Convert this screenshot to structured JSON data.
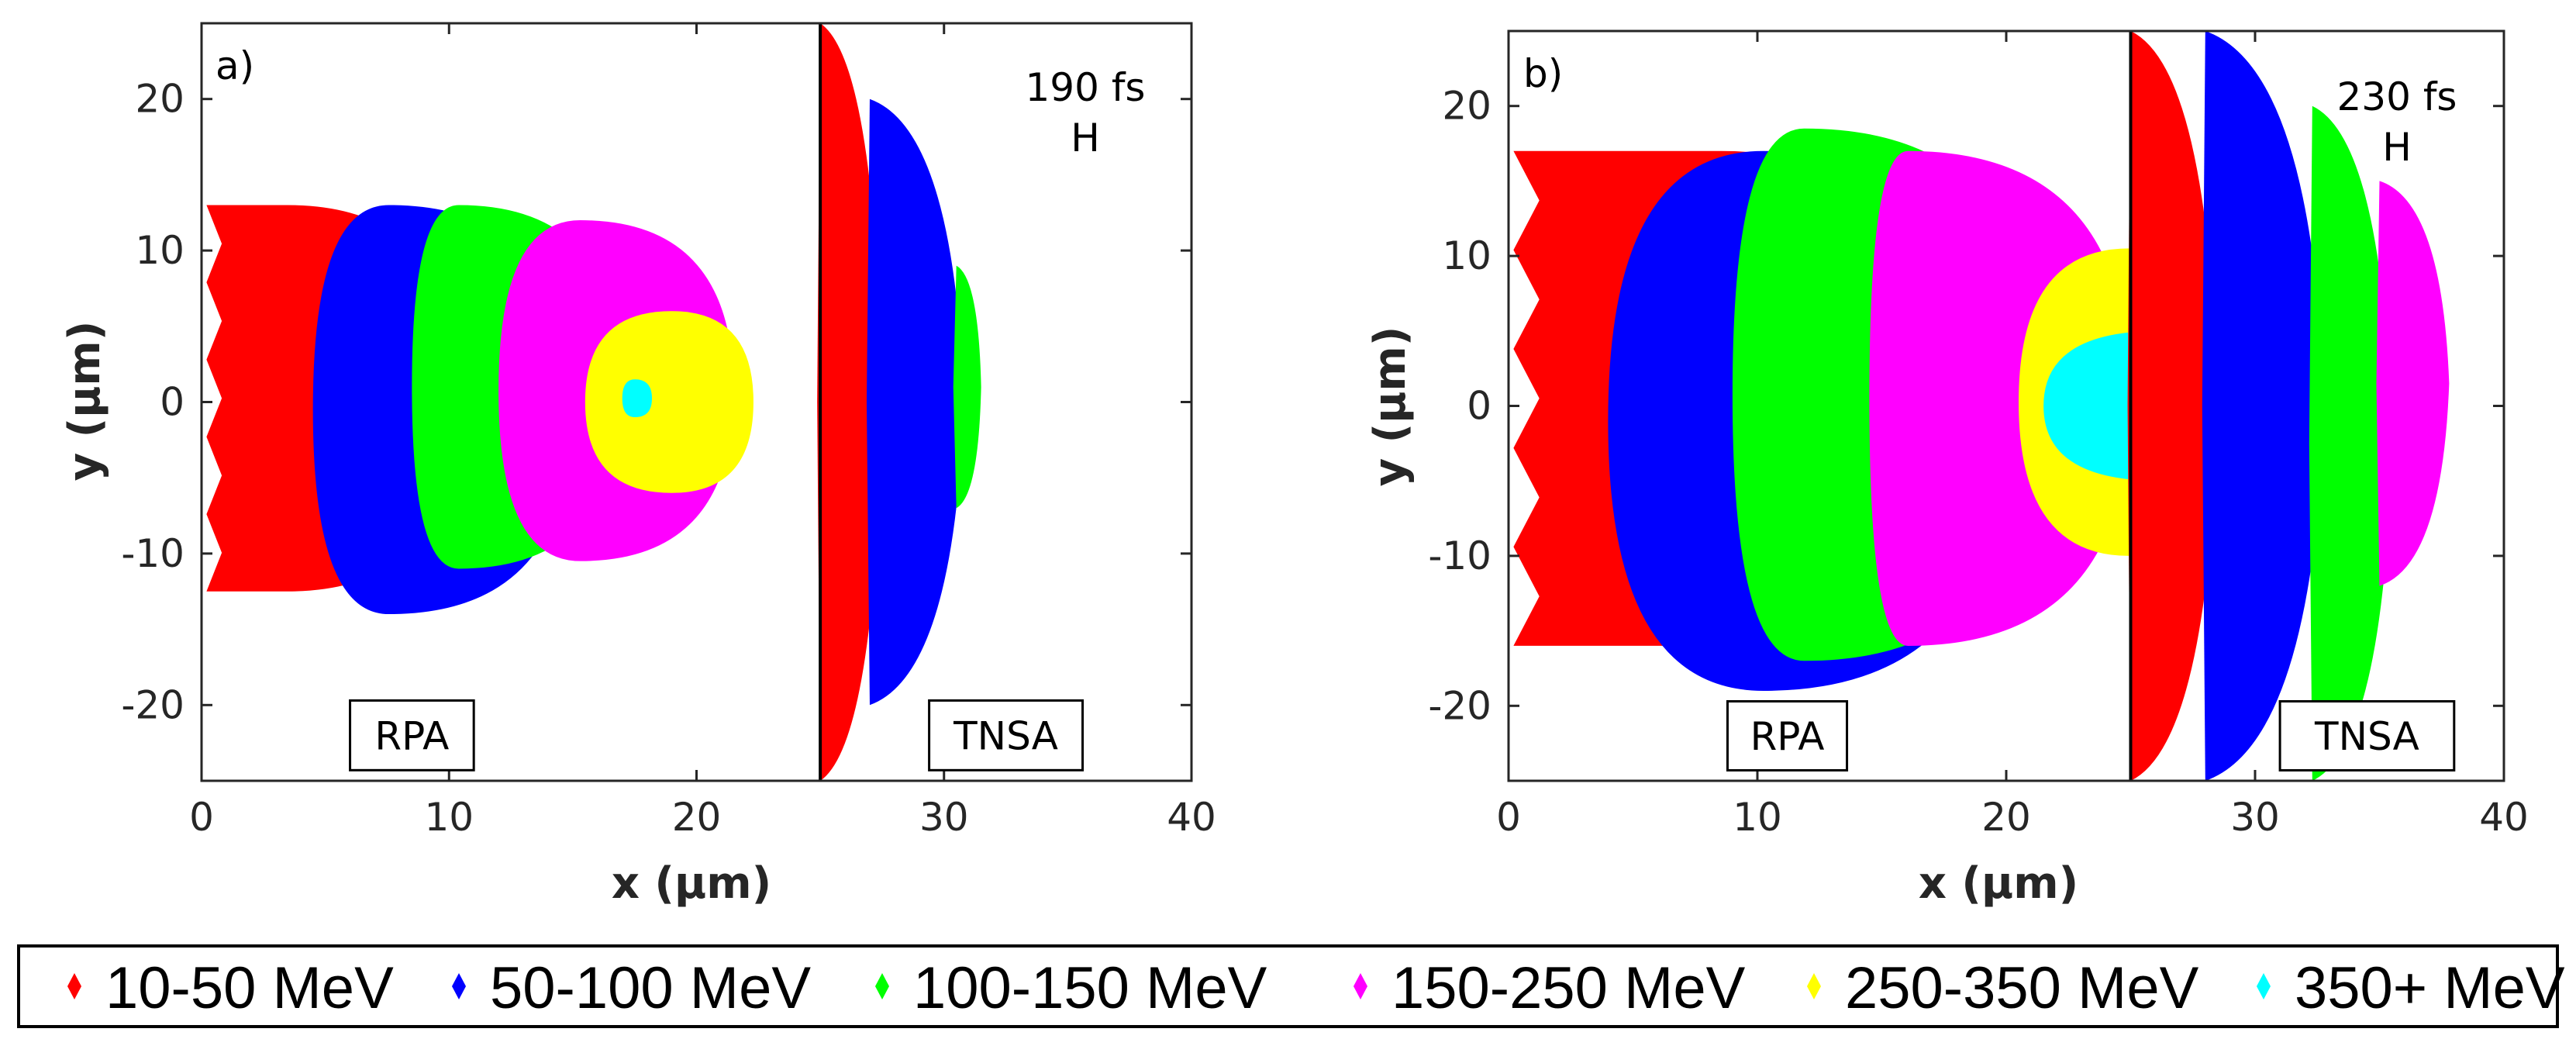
{
  "chart_data": [
    {
      "type": "scatter",
      "panel_label": "a)",
      "time": "190 fs",
      "species": "H",
      "xlabel": "x (μm)",
      "ylabel": "y (μm)",
      "xlim": [
        0,
        40
      ],
      "ylim": [
        -25,
        25
      ],
      "xticks": [
        0,
        10,
        20,
        30,
        40
      ],
      "yticks": [
        -20,
        -10,
        0,
        10,
        20
      ],
      "target_rear_x": 25,
      "regions": [
        {
          "label": "RPA",
          "center_x": 8.5,
          "center_y": -22,
          "half_width": 2.5,
          "half_height": 2.3
        },
        {
          "label": "TNSA",
          "center_x": 32.5,
          "center_y": -22,
          "half_width": 3.1,
          "half_height": 2.3
        }
      ],
      "series": [
        {
          "name": "10-50 MeV",
          "color": "#ff0000",
          "rpa_x_extent": [
            0.2,
            10.5
          ],
          "rpa_y_extent": [
            -12.5,
            13
          ],
          "tnsa_x_extent": [
            25.0,
            27.5
          ],
          "tnsa_y_extent": [
            -25,
            25
          ]
        },
        {
          "name": "50-100 MeV",
          "color": "#0000ff",
          "rpa_x_extent": [
            4.5,
            15.0
          ],
          "rpa_y_extent": [
            -14,
            13
          ],
          "tnsa_x_extent": [
            27.0,
            30.8
          ],
          "tnsa_y_extent": [
            -20,
            20
          ]
        },
        {
          "name": "100-150 MeV",
          "color": "#00ff00",
          "rpa_x_extent": [
            8.5,
            17.0
          ],
          "rpa_y_extent": [
            -11,
            13
          ],
          "tnsa_x_extent": [
            30.5,
            31.5
          ],
          "tnsa_y_extent": [
            -7,
            9
          ]
        },
        {
          "name": "150-250 MeV",
          "color": "#ff00ff",
          "rpa_x_extent": [
            12.0,
            21.5
          ],
          "rpa_y_extent": [
            -10.5,
            12
          ],
          "tnsa_x_extent": [],
          "tnsa_y_extent": []
        },
        {
          "name": "250-350 MeV",
          "color": "#ffff00",
          "rpa_x_extent": [
            15.5,
            22.3
          ],
          "rpa_y_extent": [
            -6,
            6
          ],
          "tnsa_x_extent": [],
          "tnsa_y_extent": []
        },
        {
          "name": "350+ MeV",
          "color": "#00ffff",
          "rpa_x_extent": [
            17.0,
            18.2
          ],
          "rpa_y_extent": [
            -1,
            1.5
          ],
          "tnsa_x_extent": [],
          "tnsa_y_extent": []
        }
      ]
    },
    {
      "type": "scatter",
      "panel_label": "b)",
      "time": "230 fs",
      "species": "H",
      "xlabel": "x (μm)",
      "ylabel": "y (μm)",
      "xlim": [
        0,
        40
      ],
      "ylim": [
        -25,
        25
      ],
      "xticks": [
        0,
        10,
        20,
        30,
        40
      ],
      "yticks": [
        -20,
        -10,
        0,
        10,
        20
      ],
      "target_rear_x": 25,
      "regions": [
        {
          "label": "RPA",
          "center_x": 11.2,
          "center_y": -22,
          "half_width": 2.4,
          "half_height": 2.3
        },
        {
          "label": "TNSA",
          "center_x": 34.5,
          "center_y": -22,
          "half_width": 3.5,
          "half_height": 2.3
        }
      ],
      "series": [
        {
          "name": "10-50 MeV",
          "color": "#ff0000",
          "rpa_x_extent": [
            0.2,
            17.5
          ],
          "rpa_y_extent": [
            -16,
            17
          ],
          "tnsa_x_extent": [
            25.0,
            28.5
          ],
          "tnsa_y_extent": [
            -25,
            25
          ]
        },
        {
          "name": "50-100 MeV",
          "color": "#0000ff",
          "rpa_x_extent": [
            4.0,
            20.0
          ],
          "rpa_y_extent": [
            -19,
            17
          ],
          "tnsa_x_extent": [
            28.0,
            32.8
          ],
          "tnsa_y_extent": [
            -25,
            25
          ]
        },
        {
          "name": "100-150 MeV",
          "color": "#00ff00",
          "rpa_x_extent": [
            9.0,
            21.5
          ],
          "rpa_y_extent": [
            -17,
            18.5
          ],
          "tnsa_x_extent": [
            32.3,
            35.5
          ],
          "tnsa_y_extent": [
            -25,
            20
          ]
        },
        {
          "name": "150-250 MeV",
          "color": "#ff00ff",
          "rpa_x_extent": [
            14.5,
            25.0
          ],
          "rpa_y_extent": [
            -16,
            17
          ],
          "tnsa_x_extent": [
            35.0,
            37.8
          ],
          "tnsa_y_extent": [
            -12,
            15
          ]
        },
        {
          "name": "250-350 MeV",
          "color": "#ffff00",
          "rpa_x_extent": [
            20.5,
            30.5
          ],
          "rpa_y_extent": [
            -10,
            10.5
          ],
          "tnsa_x_extent": [],
          "tnsa_y_extent": []
        },
        {
          "name": "350+ MeV",
          "color": "#00ffff",
          "rpa_x_extent": [
            21.5,
            30.0
          ],
          "rpa_y_extent": [
            -5,
            5
          ],
          "tnsa_x_extent": [],
          "tnsa_y_extent": []
        }
      ]
    }
  ],
  "legend": {
    "position": "bottom",
    "marker": "diamond",
    "items": [
      {
        "label": "10-50 MeV",
        "color": "#ff0000"
      },
      {
        "label": "50-100 MeV",
        "color": "#0000ff"
      },
      {
        "label": "100-150 MeV",
        "color": "#00ff00"
      },
      {
        "label": "150-250 MeV",
        "color": "#ff00ff"
      },
      {
        "label": "250-350 MeV",
        "color": "#ffff00"
      },
      {
        "label": "350+ MeV",
        "color": "#00ffff"
      }
    ]
  }
}
